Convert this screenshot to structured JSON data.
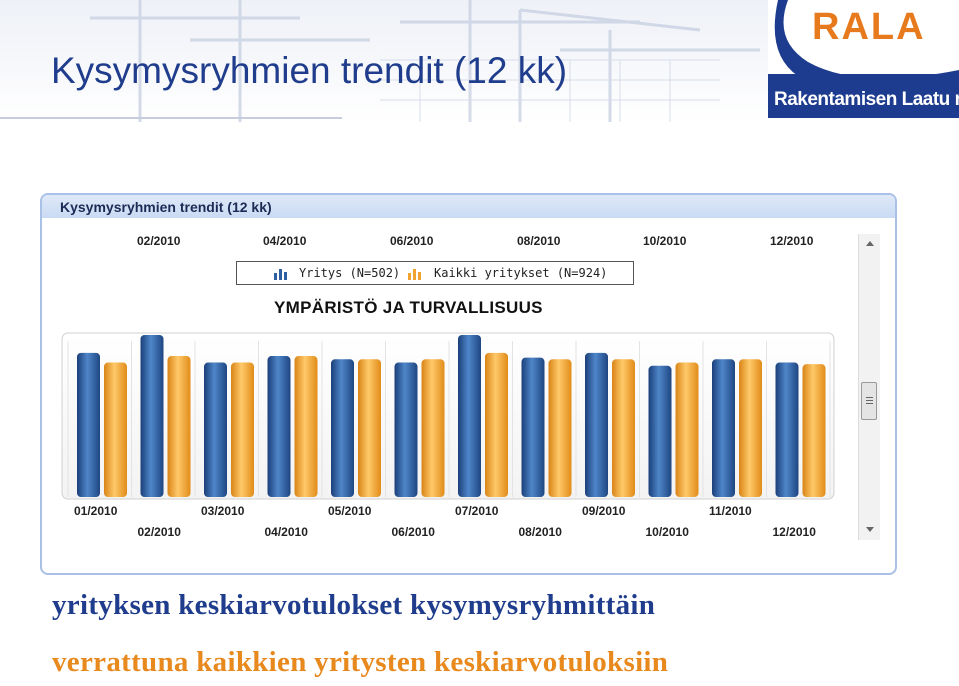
{
  "slide": {
    "title": "Kysymysryhmien trendit (12 kk)",
    "caption_line1": "yrityksen keskiarvotulokset kysymysryhmittäin",
    "caption_line2": "verrattuna kaikkien yritysten keskiarvotuloksiin"
  },
  "logo": {
    "word": "RALA",
    "subtitle": "Rakentamisen Laatu ry"
  },
  "panel": {
    "title": "Kysymysryhmien trendit (12 kk)",
    "top_months": [
      "02/2010",
      "04/2010",
      "06/2010",
      "08/2010",
      "10/2010",
      "12/2010"
    ]
  },
  "legend": {
    "company": "Yritys (N=502)",
    "all": "Kaikki yritykset (N=924)"
  },
  "chart_data": {
    "type": "bar",
    "title": "YMPÄRISTÖ JA TURVALLISUUS",
    "categories": [
      "01/2010",
      "02/2010",
      "03/2010",
      "04/2010",
      "05/2010",
      "06/2010",
      "07/2010",
      "08/2010",
      "09/2010",
      "10/2010",
      "11/2010",
      "12/2010"
    ],
    "series": [
      {
        "name": "Yritys (N=502)",
        "color": "#2d5fa3",
        "values": [
          0.89,
          1.0,
          0.83,
          0.87,
          0.85,
          0.83,
          1.0,
          0.86,
          0.89,
          0.81,
          0.85,
          0.83
        ]
      },
      {
        "name": "Kaikki yritykset (N=924)",
        "color": "#f2a22e",
        "values": [
          0.83,
          0.87,
          0.83,
          0.87,
          0.85,
          0.85,
          0.89,
          0.85,
          0.85,
          0.83,
          0.85,
          0.82
        ]
      }
    ],
    "ylim": [
      0,
      1
    ],
    "grid": true,
    "legend_position": "top"
  },
  "colors": {
    "title_blue": "#1f3d8c",
    "accent_orange": "#e8891e",
    "panel_border": "#a9c1e6"
  }
}
